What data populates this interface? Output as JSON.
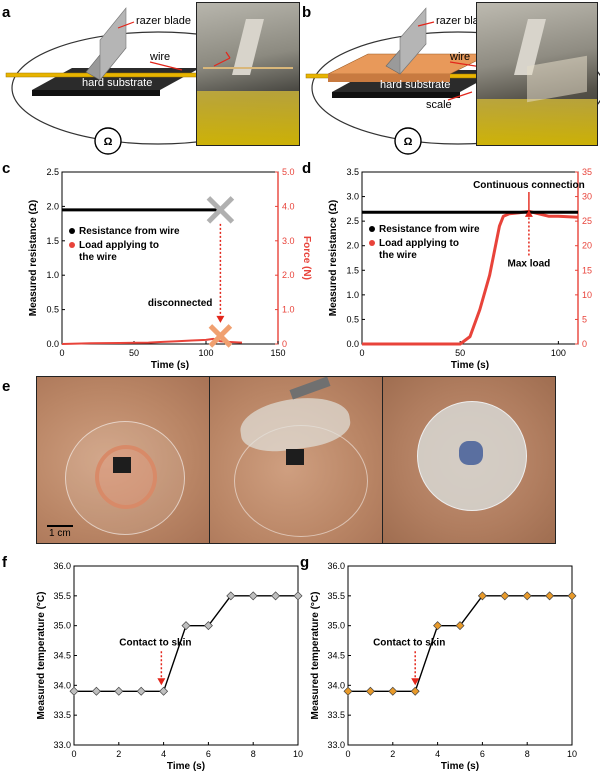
{
  "panels": {
    "a": {
      "letter": "a",
      "labels": {
        "blade": "razer blade",
        "wire": "wire",
        "substrate": "hard substrate",
        "meter": "Ω"
      }
    },
    "b": {
      "letter": "b",
      "labels": {
        "blade": "razer blade",
        "wire": "wire",
        "substrate": "hard substrate",
        "scale": "scale",
        "meter": "Ω"
      }
    },
    "e": {
      "letter": "e",
      "scalebar": "1 cm"
    }
  },
  "colors": {
    "force": "#e8433a",
    "black": "#000000",
    "wire": "#e8b400",
    "scale": "#e8995a",
    "substrate": "#2b2b2b",
    "marker": "#f0a070"
  },
  "chart_data": [
    {
      "id": "c",
      "letter": "c",
      "type": "line",
      "xlabel": "Time (s)",
      "ylabel": "Measured resistance (Ω)",
      "y2label": "Force (N)",
      "xlim": [
        0,
        150
      ],
      "xticks": [
        0,
        50,
        100,
        150
      ],
      "ylim": [
        0,
        2.5
      ],
      "yticks": [
        "0.0",
        "0.5",
        "1.0",
        "1.5",
        "2.0",
        "2.5"
      ],
      "y2lim": [
        0,
        5
      ],
      "y2ticks": [
        "0",
        "1.0",
        "2.0",
        "3.0",
        "4.0",
        "5.0"
      ],
      "legend": [
        "Resistance from wire",
        "Load applying to the wire"
      ],
      "annotations": [
        "disconnected"
      ],
      "resistance": {
        "x": [
          0,
          110
        ],
        "y": [
          1.95,
          1.95
        ]
      },
      "force": {
        "x": [
          0,
          20,
          40,
          60,
          70,
          80,
          90,
          100,
          105,
          110,
          115,
          120,
          125
        ],
        "y": [
          0,
          0.02,
          0.03,
          0.04,
          0.06,
          0.08,
          0.1,
          0.12,
          0.15,
          0.08,
          0.06,
          0.05,
          0.04
        ]
      },
      "markers": [
        {
          "kind": "gray-x",
          "x": 110,
          "y": 1.95
        },
        {
          "kind": "orange-x",
          "x": 110,
          "y": 0.03
        }
      ]
    },
    {
      "id": "d",
      "letter": "d",
      "type": "line",
      "xlabel": "Time (s)",
      "ylabel": "Measured resistance (Ω)",
      "y2label": "Force (N)",
      "xlim": [
        0,
        110
      ],
      "xticks": [
        0,
        50,
        100
      ],
      "ylim": [
        0,
        3.5
      ],
      "yticks": [
        "0.0",
        "0.5",
        "1.0",
        "1.5",
        "2.0",
        "2.5",
        "3.0",
        "3.5"
      ],
      "y2lim": [
        0,
        35
      ],
      "y2ticks": [
        "0",
        "5",
        "10",
        "15",
        "20",
        "25",
        "30",
        "35"
      ],
      "legend": [
        "Resistance from wire",
        "Load applying to the wire"
      ],
      "annotations": [
        "Continuous connection",
        "Max load"
      ],
      "resistance": {
        "x": [
          0,
          110
        ],
        "y": [
          2.68,
          2.68
        ]
      },
      "force": {
        "x": [
          0,
          50,
          55,
          60,
          65,
          68,
          70,
          72,
          75,
          80,
          85,
          90,
          95,
          100,
          110
        ],
        "y": [
          0,
          0,
          1.5,
          7,
          14,
          20,
          24,
          26,
          26.5,
          26.7,
          27.0,
          26.5,
          26.0,
          26.0,
          25.8
        ]
      },
      "markers": [
        {
          "kind": "max-load",
          "x": 85,
          "y": 27.5
        }
      ]
    },
    {
      "id": "f",
      "letter": "f",
      "type": "line",
      "xlabel": "Time (s)",
      "ylabel": "Measured temperature (°C)",
      "xlim": [
        0,
        10
      ],
      "xticks": [
        0,
        2,
        4,
        6,
        8,
        10
      ],
      "ylim": [
        33.0,
        36.0
      ],
      "yticks": [
        "33.0",
        "33.5",
        "34.0",
        "34.5",
        "35.0",
        "35.5",
        "36.0"
      ],
      "annotations": [
        "Contact to skin"
      ],
      "contact_x": 3.9,
      "series": [
        {
          "x": [
            0,
            1,
            2,
            3,
            4,
            5,
            6,
            7,
            8,
            9,
            10
          ],
          "values": [
            33.9,
            33.9,
            33.9,
            33.9,
            33.9,
            35.0,
            35.0,
            35.5,
            35.5,
            35.5,
            35.5
          ]
        }
      ],
      "marker_color": "#bfbfbf"
    },
    {
      "id": "g",
      "letter": "g",
      "type": "line",
      "xlabel": "Time (s)",
      "ylabel": "Measured temperature (°C)",
      "xlim": [
        0,
        10
      ],
      "xticks": [
        0,
        2,
        4,
        6,
        8,
        10
      ],
      "ylim": [
        33.0,
        36.0
      ],
      "yticks": [
        "33.0",
        "33.5",
        "34.0",
        "34.5",
        "35.0",
        "35.5",
        "36.0"
      ],
      "annotations": [
        "Contact to skin"
      ],
      "contact_x": 3.0,
      "series": [
        {
          "x": [
            0,
            1,
            2,
            3,
            4,
            5,
            6,
            7,
            8,
            9,
            10
          ],
          "values": [
            33.9,
            33.9,
            33.9,
            33.9,
            35.0,
            35.0,
            35.5,
            35.5,
            35.5,
            35.5,
            35.5
          ]
        }
      ],
      "marker_color": "#e89a2a"
    }
  ]
}
